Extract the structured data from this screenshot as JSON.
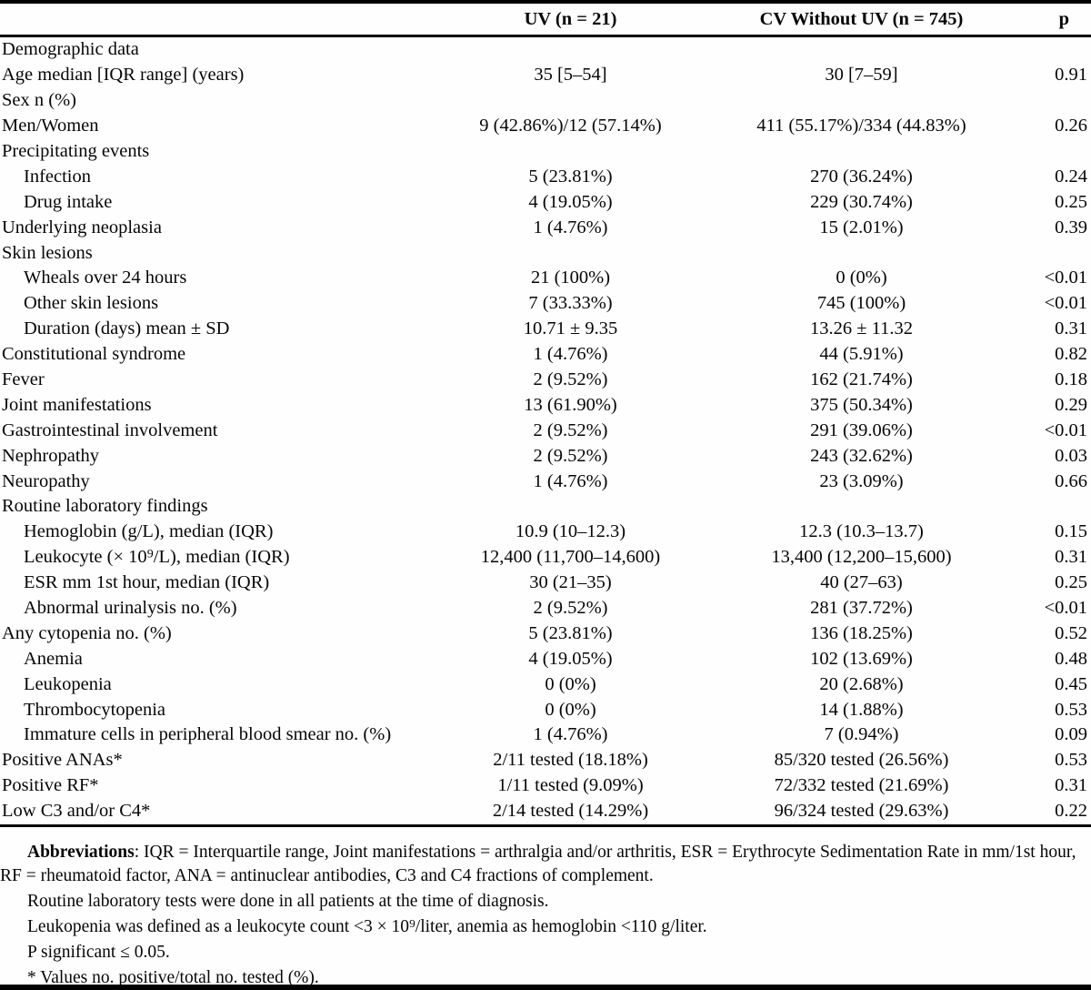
{
  "header": {
    "col_uv": "UV (n = 21)",
    "col_cv": "CV Without UV (n = 745)",
    "col_p": "p"
  },
  "rows": [
    {
      "label": "Demographic data",
      "indent": 0,
      "uv": "",
      "cv": "",
      "p": ""
    },
    {
      "label": "Age median [IQR range] (years)",
      "indent": 0,
      "uv": "35 [5–54]",
      "cv": "30 [7–59]",
      "p": "0.91"
    },
    {
      "label": "Sex n (%)",
      "indent": 0,
      "uv": "",
      "cv": "",
      "p": ""
    },
    {
      "label": "Men/Women",
      "indent": 0,
      "uv": "9 (42.86%)/12 (57.14%)",
      "cv": "411 (55.17%)/334 (44.83%)",
      "p": "0.26"
    },
    {
      "label": "Precipitating events",
      "indent": 0,
      "uv": "",
      "cv": "",
      "p": ""
    },
    {
      "label": "Infection",
      "indent": 1,
      "uv": "5 (23.81%)",
      "cv": "270 (36.24%)",
      "p": "0.24"
    },
    {
      "label": "Drug intake",
      "indent": 1,
      "uv": "4 (19.05%)",
      "cv": "229 (30.74%)",
      "p": "0.25"
    },
    {
      "label": "Underlying neoplasia",
      "indent": 0,
      "uv": "1 (4.76%)",
      "cv": "15 (2.01%)",
      "p": "0.39"
    },
    {
      "label": "Skin lesions",
      "indent": 0,
      "uv": "",
      "cv": "",
      "p": ""
    },
    {
      "label": "Wheals over 24 hours",
      "indent": 1,
      "uv": "21 (100%)",
      "cv": "0 (0%)",
      "p": "<0.01"
    },
    {
      "label": "Other skin lesions",
      "indent": 1,
      "uv": "7 (33.33%)",
      "cv": "745 (100%)",
      "p": "<0.01"
    },
    {
      "label": "Duration (days) mean ± SD",
      "indent": 1,
      "uv": "10.71 ± 9.35",
      "cv": "13.26 ± 11.32",
      "p": "0.31"
    },
    {
      "label": "Constitutional syndrome",
      "indent": 0,
      "uv": "1 (4.76%)",
      "cv": "44 (5.91%)",
      "p": "0.82"
    },
    {
      "label": "Fever",
      "indent": 0,
      "uv": "2 (9.52%)",
      "cv": "162 (21.74%)",
      "p": "0.18"
    },
    {
      "label": "Joint manifestations",
      "indent": 0,
      "uv": "13 (61.90%)",
      "cv": "375 (50.34%)",
      "p": "0.29"
    },
    {
      "label": "Gastrointestinal involvement",
      "indent": 0,
      "uv": "2 (9.52%)",
      "cv": "291 (39.06%)",
      "p": "<0.01"
    },
    {
      "label": "Nephropathy",
      "indent": 0,
      "uv": "2 (9.52%)",
      "cv": "243 (32.62%)",
      "p": "0.03"
    },
    {
      "label": "Neuropathy",
      "indent": 0,
      "uv": "1 (4.76%)",
      "cv": "23 (3.09%)",
      "p": "0.66"
    },
    {
      "label": "Routine laboratory findings",
      "indent": 0,
      "uv": "",
      "cv": "",
      "p": ""
    },
    {
      "label": "Hemoglobin (g/L), median (IQR)",
      "indent": 1,
      "uv": "10.9 (10–12.3)",
      "cv": "12.3 (10.3–13.7)",
      "p": "0.15"
    },
    {
      "label": "Leukocyte (× 10⁹/L), median (IQR)",
      "indent": 1,
      "uv": "12,400 (11,700–14,600)",
      "cv": "13,400 (12,200–15,600)",
      "p": "0.31"
    },
    {
      "label": "ESR mm 1st hour, median (IQR)",
      "indent": 1,
      "uv": "30 (21–35)",
      "cv": "40 (27–63)",
      "p": "0.25"
    },
    {
      "label": "Abnormal urinalysis no. (%)",
      "indent": 1,
      "uv": "2 (9.52%)",
      "cv": "281 (37.72%)",
      "p": "<0.01"
    },
    {
      "label": "Any cytopenia no. (%)",
      "indent": 0,
      "uv": "5 (23.81%)",
      "cv": "136 (18.25%)",
      "p": "0.52"
    },
    {
      "label": "Anemia",
      "indent": 1,
      "uv": "4 (19.05%)",
      "cv": "102 (13.69%)",
      "p": "0.48"
    },
    {
      "label": "Leukopenia",
      "indent": 1,
      "uv": "0 (0%)",
      "cv": "20 (2.68%)",
      "p": "0.45"
    },
    {
      "label": "Thrombocytopenia",
      "indent": 1,
      "uv": "0 (0%)",
      "cv": "14 (1.88%)",
      "p": "0.53"
    },
    {
      "label": "Immature cells in peripheral blood smear no. (%)",
      "indent": 1,
      "uv": "1 (4.76%)",
      "cv": "7 (0.94%)",
      "p": "0.09"
    },
    {
      "label": "Positive ANAs*",
      "indent": 0,
      "uv": "2/11 tested (18.18%)",
      "cv": "85/320 tested (26.56%)",
      "p": "0.53"
    },
    {
      "label": "Positive RF*",
      "indent": 0,
      "uv": "1/11 tested (9.09%)",
      "cv": "72/332 tested (21.69%)",
      "p": "0.31"
    },
    {
      "label": "Low C3 and/or C4*",
      "indent": 0,
      "uv": "2/14 tested (14.29%)",
      "cv": "96/324 tested (29.63%)",
      "p": "0.22"
    }
  ],
  "footnotes": {
    "abbreviations_label": "Abbreviations",
    "abbreviations_text": ": IQR = Interquartile range, Joint manifestations = arthralgia and/or arthritis, ESR = Erythrocyte Sedimentation Rate in mm/1st hour, RF = rheumatoid factor, ANA = antinuclear antibodies, C3 and C4 fractions of complement.",
    "note_lab": "Routine laboratory tests were done in all patients at the time of diagnosis.",
    "note_leukopenia": "Leukopenia was defined as a leukocyte count <3 × 10⁹/liter, anemia as hemoglobin <110 g/liter.",
    "note_significance": "P significant ≤ 0.05.",
    "note_asterisk": "* Values no. positive/total no. tested (%)."
  }
}
